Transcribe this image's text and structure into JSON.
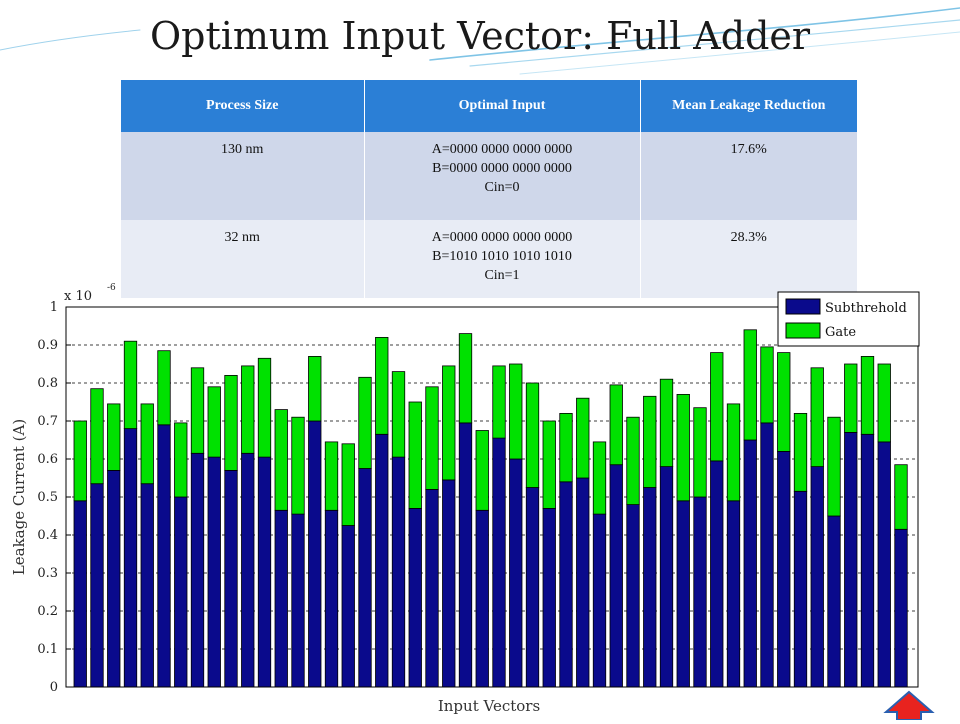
{
  "slide": {
    "title": "Optimum Input Vector: Full Adder"
  },
  "table": {
    "headers": [
      "Process Size",
      "Optimal Input",
      "Mean Leakage Reduction"
    ],
    "rows": [
      {
        "process": "130 nm",
        "input": [
          "A=0000 0000 0000 0000",
          "B=0000 0000 0000 0000",
          "Cin=0"
        ],
        "reduction": "17.6%"
      },
      {
        "process": "32 nm",
        "input": [
          "A=0000 0000 0000 0000",
          "B=1010 1010 1010 1010",
          "Cin=1"
        ],
        "reduction": "28.3%"
      }
    ]
  },
  "colors": {
    "header_bg": "#2b7fd6",
    "subthreshold": "#0a0a8c",
    "gate": "#00e100",
    "nav_button": "#e8231f"
  },
  "nav": {
    "icon": "home-up-arrow-icon"
  },
  "chart_data": {
    "type": "bar",
    "stacked": true,
    "xlabel": "Input Vectors",
    "ylabel": "Leakage Current (A)",
    "scale_label": "x 10",
    "scale_exponent": "-6",
    "ylim": [
      0,
      1
    ],
    "yticks": [
      "0",
      "0.1",
      "0.2",
      "0.3",
      "0.4",
      "0.5",
      "0.6",
      "0.7",
      "0.8",
      "0.9",
      "1"
    ],
    "grid": "horizontal dashed",
    "legend_position": "top-right",
    "series": [
      {
        "name": "Subthrehold",
        "values": [
          0.49,
          0.535,
          0.57,
          0.68,
          0.535,
          0.69,
          0.5,
          0.615,
          0.605,
          0.57,
          0.615,
          0.605,
          0.465,
          0.455,
          0.7,
          0.465,
          0.425,
          0.575,
          0.665,
          0.605,
          0.47,
          0.52,
          0.545,
          0.695,
          0.465,
          0.655,
          0.6,
          0.525,
          0.47,
          0.54,
          0.55,
          0.455,
          0.585,
          0.48,
          0.525,
          0.58,
          0.49,
          0.5,
          0.595,
          0.49,
          0.65,
          0.695,
          0.62,
          0.515,
          0.58,
          0.45,
          0.67,
          0.665,
          0.645,
          0.415
        ]
      },
      {
        "name": "Gate",
        "values": [
          0.21,
          0.25,
          0.175,
          0.23,
          0.21,
          0.195,
          0.195,
          0.225,
          0.185,
          0.25,
          0.23,
          0.26,
          0.265,
          0.255,
          0.17,
          0.18,
          0.215,
          0.24,
          0.255,
          0.225,
          0.28,
          0.27,
          0.3,
          0.235,
          0.21,
          0.19,
          0.25,
          0.275,
          0.23,
          0.18,
          0.21,
          0.19,
          0.21,
          0.23,
          0.24,
          0.23,
          0.28,
          0.235,
          0.285,
          0.255,
          0.29,
          0.2,
          0.26,
          0.205,
          0.26,
          0.26,
          0.18,
          0.205,
          0.205,
          0.17
        ]
      }
    ]
  }
}
